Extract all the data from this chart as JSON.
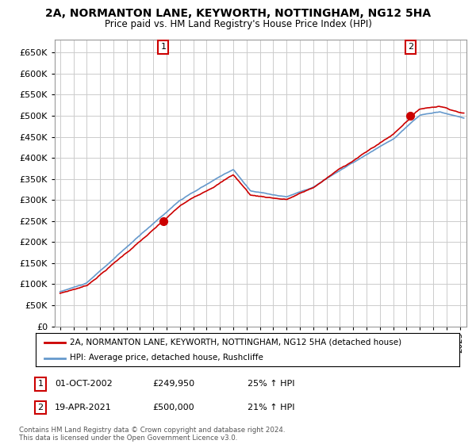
{
  "title": "2A, NORMANTON LANE, KEYWORTH, NOTTINGHAM, NG12 5HA",
  "subtitle": "Price paid vs. HM Land Registry's House Price Index (HPI)",
  "ylim": [
    0,
    680000
  ],
  "yticks": [
    0,
    50000,
    100000,
    150000,
    200000,
    250000,
    300000,
    350000,
    400000,
    450000,
    500000,
    550000,
    600000,
    650000
  ],
  "xlim_start": 1994.6,
  "xlim_end": 2025.5,
  "background_color": "#ffffff",
  "grid_color": "#cccccc",
  "sale1_x": 2002.75,
  "sale1_y": 249950,
  "sale2_x": 2021.29,
  "sale2_y": 500000,
  "legend_property": "2A, NORMANTON LANE, KEYWORTH, NOTTINGHAM, NG12 5HA (detached house)",
  "legend_hpi": "HPI: Average price, detached house, Rushcliffe",
  "ann1_date": "01-OCT-2002",
  "ann1_price": "£249,950",
  "ann1_pct": "25% ↑ HPI",
  "ann2_date": "19-APR-2021",
  "ann2_price": "£500,000",
  "ann2_pct": "21% ↑ HPI",
  "footer": "Contains HM Land Registry data © Crown copyright and database right 2024.\nThis data is licensed under the Open Government Licence v3.0.",
  "property_line_color": "#cc0000",
  "hpi_line_color": "#6699cc",
  "marker_color": "#cc0000"
}
